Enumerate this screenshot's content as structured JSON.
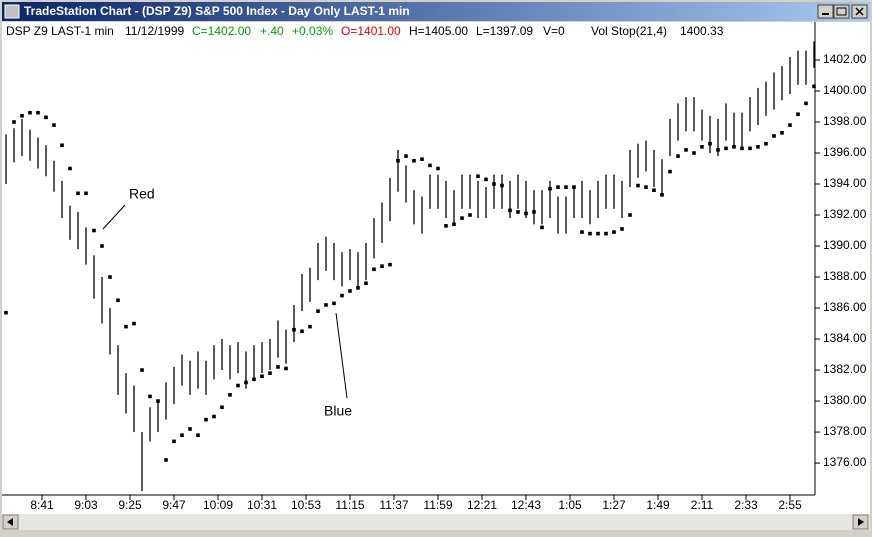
{
  "window_title": "TradeStation Chart - (DSP Z9) S&P 500 Index - Day Only LAST-1 min",
  "chart_data": {
    "type": "ohlc",
    "header": {
      "symbol": "DSP Z9 LAST-1 min",
      "date": "11/12/1999",
      "close": "C=1402.00",
      "change": "+.40",
      "change_pct": "+0.03%",
      "open": "O=1401.00",
      "high": "H=1405.00",
      "low": "L=1397.09",
      "volume": "V=0",
      "indicator": "Vol Stop(21,4)",
      "indicator_value": 1400.33
    },
    "annotations": [
      "Red",
      "Blue"
    ],
    "x": [
      "8:23",
      "8:27",
      "8:31",
      "8:35",
      "8:39",
      "8:43",
      "8:47",
      "8:51",
      "8:55",
      "8:59",
      "9:03",
      "9:07",
      "9:11",
      "9:15",
      "9:19",
      "9:23",
      "9:27",
      "9:31",
      "9:35",
      "9:39",
      "9:43",
      "9:47",
      "9:51",
      "9:55",
      "9:59",
      "10:03",
      "10:07",
      "10:11",
      "10:15",
      "10:19",
      "10:23",
      "10:27",
      "10:31",
      "10:35",
      "10:39",
      "10:43",
      "10:47",
      "10:51",
      "10:55",
      "10:59",
      "11:03",
      "11:07",
      "11:11",
      "11:15",
      "11:19",
      "11:23",
      "11:27",
      "11:31",
      "11:35",
      "11:39",
      "11:43",
      "11:47",
      "11:51",
      "11:55",
      "11:59",
      "12:03",
      "12:07",
      "12:11",
      "12:15",
      "12:19",
      "12:23",
      "12:27",
      "12:31",
      "12:35",
      "12:39",
      "12:43",
      "12:47",
      "12:51",
      "12:55",
      "12:59",
      "1:03",
      "1:07",
      "1:11",
      "1:15",
      "1:19",
      "1:23",
      "1:27",
      "1:31",
      "1:35",
      "1:39",
      "1:43",
      "1:47",
      "1:51",
      "1:55",
      "1:59",
      "2:03",
      "2:07",
      "2:11",
      "2:15",
      "2:19",
      "2:23",
      "2:27",
      "2:31",
      "2:35",
      "2:39",
      "2:43",
      "2:47",
      "2:51",
      "2:55",
      "2:59",
      "3:03",
      "3:07"
    ],
    "series": [
      {
        "name": "DSP Z9 LAST-1 min",
        "color": "#000000",
        "high": [
          1397.2,
          1397.6,
          1398.2,
          1397.5,
          1397,
          1396.5,
          1395.5,
          1394.2,
          1392.6,
          1392.2,
          1391.2,
          1389.4,
          1388,
          1386,
          1383.6,
          1381.8,
          1381,
          1378,
          1379.6,
          1380,
          1381.2,
          1382.2,
          1383,
          1382.6,
          1383.2,
          1382.6,
          1383.6,
          1384,
          1383.6,
          1383.8,
          1383.2,
          1383.6,
          1383.8,
          1384,
          1385.2,
          1384.6,
          1386.2,
          1388.2,
          1388.6,
          1390.2,
          1390.6,
          1390.2,
          1389.6,
          1389.8,
          1389.6,
          1390.2,
          1391.8,
          1392.8,
          1394.4,
          1396.2,
          1395.2,
          1393.6,
          1393.2,
          1394.6,
          1394.6,
          1394.2,
          1393.6,
          1394.6,
          1394.6,
          1394.2,
          1393.8,
          1394.6,
          1394.6,
          1394.2,
          1394.6,
          1394.2,
          1393.6,
          1393.6,
          1394.2,
          1393.2,
          1393.2,
          1393.8,
          1394.2,
          1393.6,
          1394.2,
          1394.6,
          1394.6,
          1394.2,
          1396.2,
          1396.6,
          1396.8,
          1396.2,
          1395.6,
          1398.2,
          1399.2,
          1399.6,
          1399.6,
          1398.8,
          1398.4,
          1398.2,
          1399.2,
          1398.6,
          1398.6,
          1399.6,
          1400.2,
          1400.6,
          1401.2,
          1401.6,
          1402.2,
          1402.6,
          1402.6,
          1403.2
        ],
        "low": [
          1394,
          1395.4,
          1395.8,
          1395.5,
          1395,
          1394.5,
          1393.5,
          1391.8,
          1390.4,
          1389.8,
          1388.8,
          1386.6,
          1385,
          1383,
          1380.4,
          1379.2,
          1378,
          1374.2,
          1377.4,
          1378,
          1378.8,
          1379.8,
          1381,
          1380.4,
          1380.8,
          1380.4,
          1381.4,
          1382,
          1381.4,
          1381.8,
          1380.8,
          1381.4,
          1381.8,
          1382,
          1382.8,
          1382.4,
          1383.8,
          1385.8,
          1386.4,
          1387.8,
          1388.4,
          1387.8,
          1387.4,
          1387.8,
          1387.4,
          1387.8,
          1389.2,
          1390.2,
          1391.6,
          1393.5,
          1392.8,
          1391.4,
          1390.8,
          1392.4,
          1392.4,
          1391.8,
          1391.4,
          1392.4,
          1392.4,
          1391.8,
          1391.8,
          1392.4,
          1392.4,
          1391.8,
          1392.4,
          1391.8,
          1391.4,
          1391.4,
          1391.8,
          1390.8,
          1390.8,
          1391.8,
          1391.8,
          1391.4,
          1391.8,
          1392.4,
          1392.4,
          1391.8,
          1393.8,
          1394.4,
          1394.8,
          1393.8,
          1393.4,
          1395.8,
          1396.8,
          1397.4,
          1397.4,
          1396.8,
          1396,
          1395.8,
          1396.8,
          1396.4,
          1396.4,
          1397.4,
          1397.8,
          1398.4,
          1398.8,
          1399.4,
          1399.8,
          1400.4,
          1400.4,
          1401.5
        ]
      },
      {
        "name": "Vol Stop(21,4)",
        "color": "#000000",
        "values": [
          1385.7,
          1398,
          1398.4,
          1398.6,
          1398.6,
          1398.3,
          1397.8,
          1396.5,
          1395,
          1393.4,
          1393.4,
          1391,
          1390,
          1388,
          1386.5,
          1384.8,
          1385,
          1382,
          1380.3,
          1380,
          1376.2,
          1377.4,
          1377.8,
          1378.2,
          1377.8,
          1378.8,
          1379,
          1379.6,
          1380.4,
          1381,
          1381.2,
          1381.4,
          1381.6,
          1381.8,
          1382.2,
          1382.1,
          1384.6,
          1384.5,
          1384.8,
          1385.8,
          1386.2,
          1386.3,
          1386.8,
          1387.1,
          1387.3,
          1387.6,
          1388.5,
          1388.7,
          1388.8,
          1395.5,
          1395.8,
          1395.5,
          1395.6,
          1395.2,
          1395,
          1391.3,
          1391.4,
          1391.8,
          1392,
          1394.5,
          1394.3,
          1394,
          1393.9,
          1392.3,
          1392.2,
          1392.1,
          1392.2,
          1391.2,
          1393.7,
          1393.8,
          1393.8,
          1393.8,
          1390.9,
          1390.8,
          1390.8,
          1390.8,
          1390.9,
          1391.1,
          1392,
          1393.9,
          1393.8,
          1393.6,
          1393.3,
          1394.8,
          1395.8,
          1396.2,
          1396,
          1396.4,
          1396.6,
          1396.2,
          1396.3,
          1396.4,
          1396.3,
          1396.3,
          1396.4,
          1396.6,
          1397.1,
          1397.3,
          1397.8,
          1398.5,
          1399.2,
          1400.3
        ]
      }
    ],
    "ylim": [
      1373.94,
      1404.45
    ],
    "yticks": [
      {
        "value": 1376,
        "label": "1376.00"
      },
      {
        "value": 1378,
        "label": "1378.00"
      },
      {
        "value": 1380,
        "label": "1380.00"
      },
      {
        "value": 1382,
        "label": "1382.00"
      },
      {
        "value": 1384,
        "label": "1384.00"
      },
      {
        "value": 1386,
        "label": "1386.00"
      },
      {
        "value": 1388,
        "label": "1388.00"
      },
      {
        "value": 1390,
        "label": "1390.00"
      },
      {
        "value": 1392,
        "label": "1392.00"
      },
      {
        "value": 1394,
        "label": "1394.00"
      },
      {
        "value": 1396,
        "label": "1396.00"
      },
      {
        "value": 1398,
        "label": "1398.00"
      },
      {
        "value": 1400,
        "label": "1400.00"
      },
      {
        "value": 1402,
        "label": "1402.00"
      }
    ],
    "xticks": [
      "8:41",
      "9:03",
      "9:25",
      "9:47",
      "10:09",
      "10:31",
      "10:53",
      "11:15",
      "11:37",
      "11:59",
      "12:21",
      "12:43",
      "1:05",
      "1:27",
      "1:49",
      "2:11",
      "2:33",
      "2:55"
    ]
  }
}
